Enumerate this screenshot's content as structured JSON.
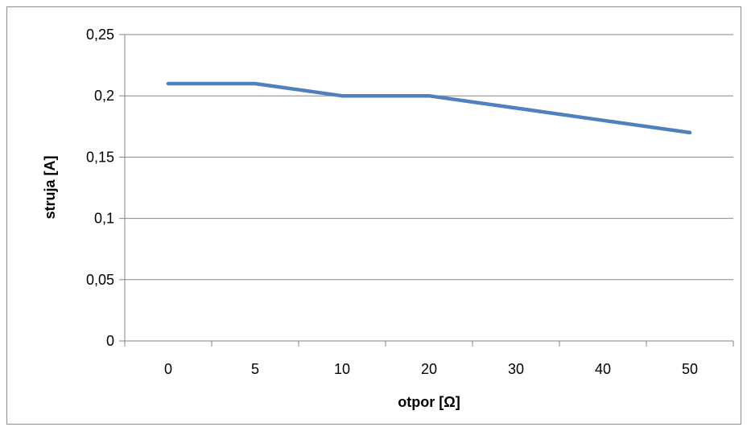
{
  "chart_data": {
    "type": "line",
    "categories": [
      "0",
      "5",
      "10",
      "20",
      "30",
      "40",
      "50"
    ],
    "series": [
      {
        "values": [
          0.21,
          0.21,
          0.2,
          0.2,
          0.19,
          0.18,
          0.17
        ],
        "color": "#4f81bd"
      }
    ],
    "xlabel": "otpor [Ω]",
    "ylabel": "struja [A]",
    "ylim": [
      0,
      0.25
    ],
    "yticks": [
      "0",
      "0,05",
      "0,1",
      "0,15",
      "0,2",
      "0,25"
    ],
    "grid": true,
    "legend": "none",
    "colors": {
      "line": "#4f81bd",
      "grid": "#868686",
      "axis": "#868686"
    }
  }
}
